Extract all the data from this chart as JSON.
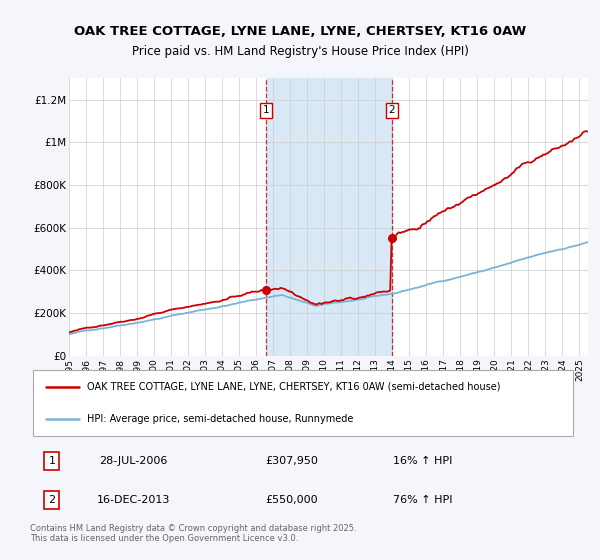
{
  "title_line1": "OAK TREE COTTAGE, LYNE LANE, LYNE, CHERTSEY, KT16 0AW",
  "title_line2": "Price paid vs. HM Land Registry's House Price Index (HPI)",
  "legend_line1": "OAK TREE COTTAGE, LYNE LANE, LYNE, CHERTSEY, KT16 0AW (semi-detached house)",
  "legend_line2": "HPI: Average price, semi-detached house, Runnymede",
  "sale1_date": "28-JUL-2006",
  "sale1_price": 307950,
  "sale1_hpi": "16% ↑ HPI",
  "sale2_date": "16-DEC-2013",
  "sale2_price": 550000,
  "sale2_hpi": "76% ↑ HPI",
  "footnote": "Contains HM Land Registry data © Crown copyright and database right 2025.\nThis data is licensed under the Open Government Licence v3.0.",
  "hpi_color": "#7ab3d9",
  "price_color": "#cc0000",
  "bg_color": "#f4f6fb",
  "plot_bg": "#ffffff",
  "shade_color": "#d8e8f5",
  "grid_color": "#cccccc",
  "ylim": [
    0,
    1300000
  ],
  "sale1_year": 2006.57,
  "sale2_year": 2013.96,
  "start_year": 1995,
  "end_year": 2025
}
